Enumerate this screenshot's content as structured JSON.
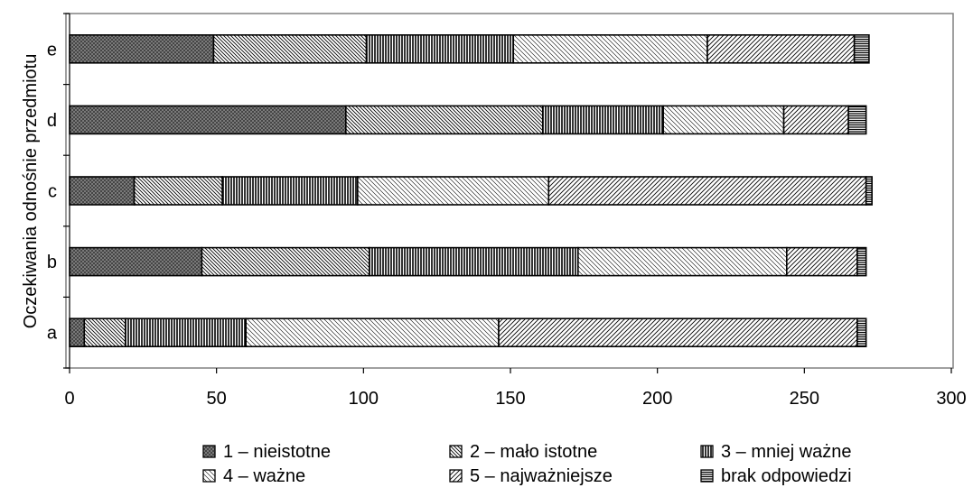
{
  "chart_data": {
    "type": "bar",
    "orientation": "horizontal",
    "stacked": true,
    "title": "",
    "xlabel": "",
    "ylabel": "Oczekiwania odnośnie przedmiotu",
    "xlim": [
      0,
      300
    ],
    "xticks": [
      0,
      50,
      100,
      150,
      200,
      250,
      300
    ],
    "categories": [
      "a",
      "b",
      "c",
      "d",
      "e"
    ],
    "grid": false,
    "legend_position": "bottom",
    "series": [
      {
        "name": "1 – nieistotne",
        "pattern": "crosshatch-dark",
        "values": [
          5,
          45,
          22,
          94,
          49
        ]
      },
      {
        "name": "2 – mało istotne",
        "pattern": "diagonal-dense",
        "values": [
          14,
          57,
          30,
          67,
          52
        ]
      },
      {
        "name": "3 – mniej ważne",
        "pattern": "vertical",
        "values": [
          41,
          71,
          46,
          41,
          50
        ]
      },
      {
        "name": "4 – ważne",
        "pattern": "diagonal-light",
        "values": [
          86,
          71,
          65,
          41,
          66
        ]
      },
      {
        "name": "5 – najważniejsze",
        "pattern": "diagonal-wide",
        "values": [
          122,
          24,
          108,
          22,
          50
        ]
      },
      {
        "name": "brak odpowiedzi",
        "pattern": "horizontal",
        "values": [
          3,
          3,
          2,
          6,
          5
        ]
      }
    ],
    "colors": {
      "border": "#808080",
      "bar_stroke": "#000000",
      "fill": "#ffffff"
    }
  }
}
